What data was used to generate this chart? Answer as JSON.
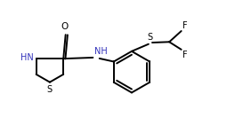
{
  "bg_color": "#ffffff",
  "line_color": "#000000",
  "label_color": "#000000",
  "nh_color": "#3333bb",
  "s_color": "#000000",
  "line_width": 1.4,
  "font_size": 7.0,
  "figsize": [
    2.64,
    1.5
  ],
  "dpi": 100,
  "xlim": [
    0,
    10.0
  ],
  "ylim": [
    0,
    6.0
  ]
}
